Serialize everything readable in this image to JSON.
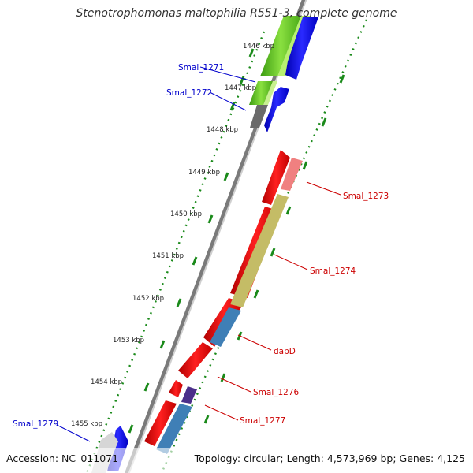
{
  "title": "Stenotrophomonas maltophilia R551-3, complete genome",
  "accession": "Accession: NC_011071",
  "summary": "Topology: circular; Length: 4,573,969 bp; Genes: 4,125",
  "ticks": [
    "1446 kbp",
    "1447 kbp",
    "1448 kbp",
    "1449 kbp",
    "1450 kbp",
    "1451 kbp",
    "1452 kbp",
    "1453 kbp",
    "1454 kbp",
    "1455 kbp"
  ],
  "genes": [
    {
      "label": "Smal_1271",
      "strand": "forward",
      "color": "#0000ff"
    },
    {
      "label": "Smal_1272",
      "strand": "forward",
      "color": "#0000ff"
    },
    {
      "label": "Smal_1273",
      "strand": "reverse",
      "color": "#cc0000"
    },
    {
      "label": "Smal_1274",
      "strand": "reverse",
      "color": "#cc0000"
    },
    {
      "label": "dapD",
      "strand": "reverse",
      "color": "#cc0000"
    },
    {
      "label": "Smal_1276",
      "strand": "reverse",
      "color": "#cc0000"
    },
    {
      "label": "Smal_1277",
      "strand": "reverse",
      "color": "#cc0000"
    },
    {
      "label": "Smal_1279",
      "strand": "forward",
      "color": "#0000ff"
    }
  ],
  "colors": {
    "backbone": "#8a8a8a",
    "forward_cds": "#0000ff",
    "reverse_cds": "#ff0000",
    "gc_skew_dots": "#1a8a1a",
    "feature_green": "#5fcc20",
    "feature_pink": "#f08080",
    "feature_khaki": "#c8c070",
    "feature_steelblue": "#4a8ac0",
    "feature_purple": "#5a3a9a",
    "feature_gray": "#777777",
    "feature_silver": "#cfcfcf"
  }
}
